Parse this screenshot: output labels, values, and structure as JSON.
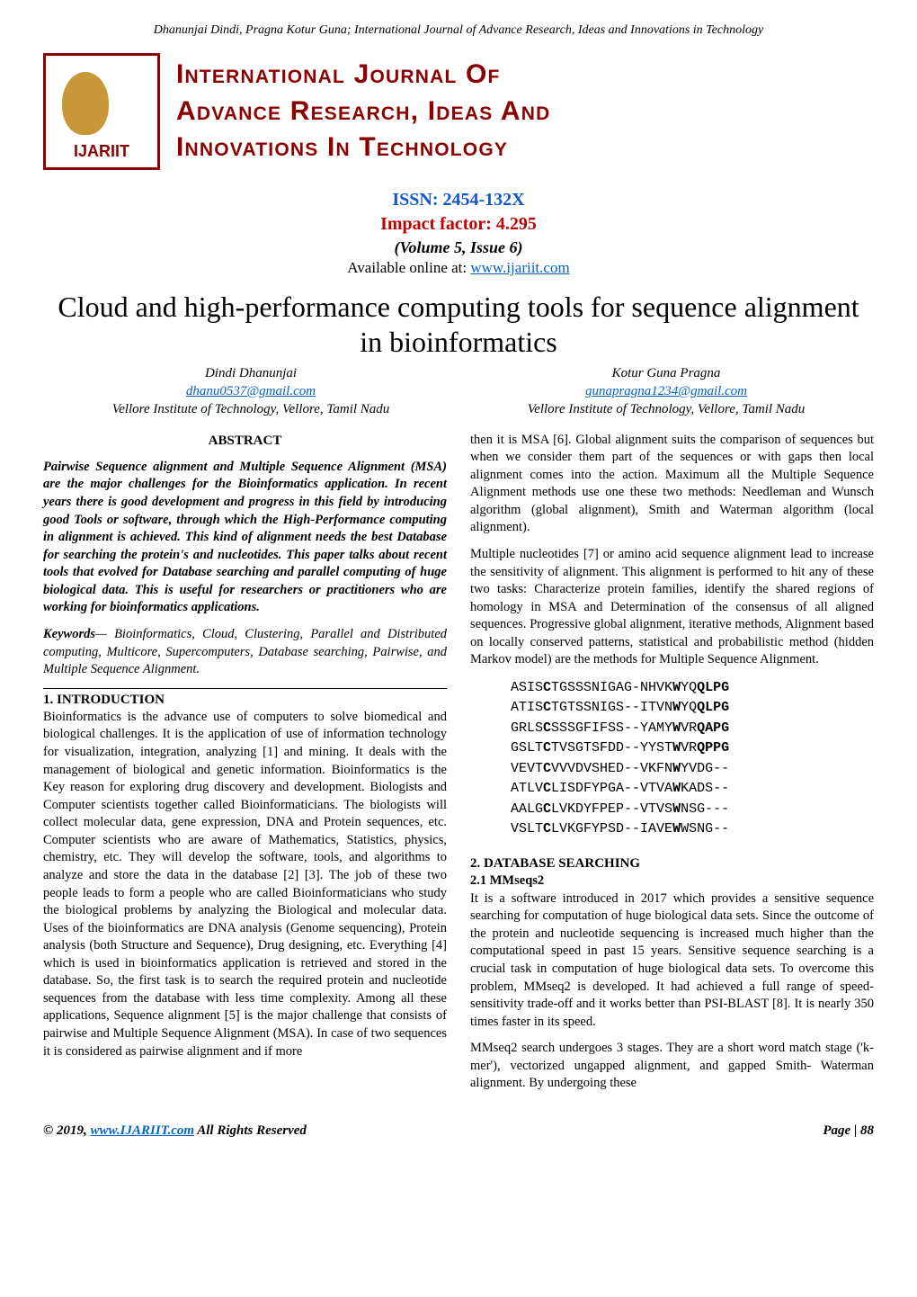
{
  "header_authors_line": "Dhanunjai Dindi, Pragna Kotur Guna; International Journal of Advance Research, Ideas and Innovations in Technology",
  "logo": {
    "line1": "International Journal Of",
    "line2": "Advance Research, Ideas And",
    "line3": "Innovations In Technology",
    "brand_color": "#8b0000",
    "logo_accent_color": "#c89838"
  },
  "meta": {
    "issn": "ISSN: 2454-132X",
    "impact": "Impact factor: 4.295",
    "volume": "(Volume 5, Issue 6)",
    "available_prefix": "Available online at: ",
    "available_link": "www.ijariit.com"
  },
  "title": "Cloud and high-performance computing tools for sequence alignment in bioinformatics",
  "authors": [
    {
      "name": "Dindi Dhanunjai",
      "email": "dhanu0537@gmail.com",
      "affiliation": "Vellore Institute of Technology, Vellore, Tamil Nadu"
    },
    {
      "name": "Kotur Guna Pragna",
      "email": "gunapragna1234@gmail.com",
      "affiliation": "Vellore Institute of Technology, Vellore, Tamil Nadu"
    }
  ],
  "abstract": {
    "heading": "ABSTRACT",
    "body": "Pairwise Sequence alignment and Multiple Sequence Alignment (MSA) are the major challenges for the Bioinformatics application. In recent years there is good development and progress in this field by introducing good Tools or software, through which the High-Performance computing in alignment is achieved. This kind of alignment needs the best Database for searching the protein's and nucleotides. This paper talks about recent tools that evolved for Database searching and parallel computing of huge biological data. This is useful for researchers or practitioners who are working for bioinformatics applications."
  },
  "keywords": {
    "label": "Keywords",
    "body": "— Bioinformatics, Cloud, Clustering, Parallel and Distributed computing, Multicore, Supercomputers, Database searching, Pairwise, and Multiple Sequence Alignment."
  },
  "sections": {
    "intro": {
      "heading": "1. INTRODUCTION",
      "p1": "Bioinformatics is the advance use of computers to solve biomedical and biological challenges. It is the application of use of information technology for visualization, integration, analyzing [1] and mining. It deals with the management of biological and genetic information. Bioinformatics is the Key reason for exploring drug discovery and development. Biologists and Computer scientists together called Bioinformaticians. The biologists will collect molecular data, gene expression, DNA and Protein sequences, etc. Computer scientists who are aware of Mathematics, Statistics, physics, chemistry, etc. They will develop the software, tools, and algorithms to analyze and store the data in the database [2] [3]. The job of these two people leads to form a people who are called Bioinformaticians who study the biological problems by analyzing the Biological and molecular data. Uses of the bioinformatics are DNA analysis (Genome sequencing), Protein analysis (both Structure and Sequence), Drug designing, etc. Everything [4] which is used in bioinformatics application is retrieved and stored in the database. So, the first task is to search the required protein and nucleotide sequences from the database with less time complexity. Among all these applications, Sequence alignment [5] is the major challenge that consists of pairwise and Multiple Sequence Alignment (MSA).  In case of two sequences it is considered as pairwise alignment and if more",
      "p2": "then it is MSA [6]. Global alignment suits the comparison of sequences but when we consider them part of the sequences or with gaps then local alignment comes into the action. Maximum all the Multiple Sequence Alignment methods use one these two methods: Needleman and Wunsch algorithm (global alignment), Smith and Waterman algorithm (local alignment).",
      "p3": "Multiple nucleotides [7] or amino acid sequence alignment lead to increase the sensitivity of alignment. This alignment is performed to hit any of these two tasks: Characterize protein families, identify the shared regions of homology in MSA and Determination of the consensus of all aligned sequences. Progressive global alignment, iterative methods, Alignment based on locally conserved patterns, statistical and probabilistic method (hidden Markov model) are the methods for Multiple Sequence Alignment."
    },
    "db": {
      "heading": "2. DATABASE SEARCHING",
      "sub1": "2.1 MMseqs2",
      "p1": "It is a software introduced in 2017 which provides a sensitive sequence searching for computation of huge biological data sets. Since the outcome of the protein and nucleotide sequencing is increased much higher than the computational speed in past 15 years. Sensitive sequence searching is a crucial task in computation of huge biological data sets. To overcome this problem, MMseq2 is developed. It had achieved a full range of speed-sensitivity trade-off and it works better than PSI-BLAST [8]. It is nearly 350 times faster in its speed.",
      "p2": "MMseq2 search undergoes 3 stages. They are a short word match stage ('k-mer'), vectorized ungapped alignment, and gapped Smith- Waterman alignment. By undergoing these"
    }
  },
  "msa_figure": {
    "font": "Courier New",
    "fontsize_pt": 15,
    "rows": [
      {
        "pre": "ASIS",
        "b1": "C",
        "mid": "TGSSSNIGAG-NHVK",
        "b2": "W",
        "post1": "YQ",
        "bend": "QLPG"
      },
      {
        "pre": "ATIS",
        "b1": "C",
        "mid": "TGTSSNIGS--ITVN",
        "b2": "W",
        "post1": "YQ",
        "bend": "QLPG"
      },
      {
        "pre": "GRLS",
        "b1": "C",
        "mid": "SSSGFIFSS--YAMY",
        "b2": "W",
        "post1": "VR",
        "bend": "QAPG"
      },
      {
        "pre": "GSLT",
        "b1": "C",
        "mid": "TVSGTSFDD--YYST",
        "b2": "W",
        "post1": "VR",
        "bend": "QPPG"
      },
      {
        "pre": "VEVT",
        "b1": "C",
        "mid": "VVVDVSHED--VKFN",
        "b2": "W",
        "post1": "YVDG--",
        "bend": ""
      },
      {
        "pre": "ATLV",
        "b1": "C",
        "mid": "LISDFYPGA--VTVA",
        "b2": "W",
        "post1": "KADS--",
        "bend": ""
      },
      {
        "pre": "AALG",
        "b1": "C",
        "mid": "LVKDYFPEP--VTVS",
        "b2": "W",
        "post1": "NSG---",
        "bend": ""
      },
      {
        "pre": "VSLT",
        "b1": "C",
        "mid": "LVKGFYPSD--IAVE",
        "b2": "W",
        "post1": "WSNG--",
        "bend": ""
      }
    ]
  },
  "footer": {
    "left_pre": "© 2019, ",
    "left_link": "www.IJARIIT.com",
    "left_post": " All Rights Reserved",
    "right": "Page | 88"
  },
  "colors": {
    "issn_blue": "#1155cc",
    "impact_red": "#c00000",
    "link_blue": "#0563c1"
  }
}
